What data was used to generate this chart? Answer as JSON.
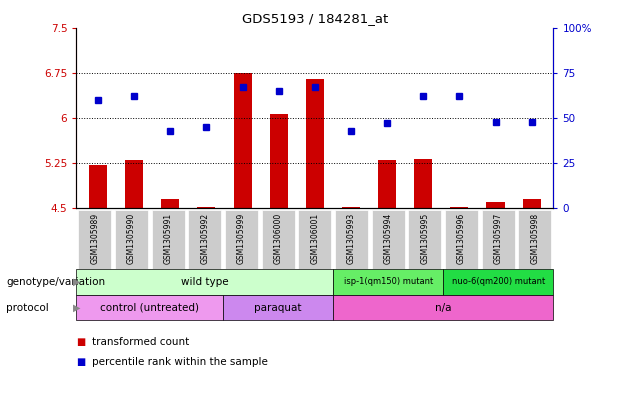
{
  "title": "GDS5193 / 184281_at",
  "samples": [
    "GSM1305989",
    "GSM1305990",
    "GSM1305991",
    "GSM1305992",
    "GSM1305999",
    "GSM1306000",
    "GSM1306001",
    "GSM1305993",
    "GSM1305994",
    "GSM1305995",
    "GSM1305996",
    "GSM1305997",
    "GSM1305998"
  ],
  "transformed_count": [
    5.22,
    5.3,
    4.65,
    4.52,
    6.75,
    6.06,
    6.65,
    4.52,
    5.3,
    5.32,
    4.52,
    4.6,
    4.65
  ],
  "percentile_rank": [
    60,
    62,
    43,
    45,
    67,
    65,
    67,
    43,
    47,
    62,
    62,
    48,
    48
  ],
  "bar_color": "#cc0000",
  "dot_color": "#0000cc",
  "ylim_left": [
    4.5,
    7.5
  ],
  "ylim_right": [
    0,
    100
  ],
  "yticks_left": [
    4.5,
    5.25,
    6.0,
    6.75,
    7.5
  ],
  "yticks_left_labels": [
    "4.5",
    "5.25",
    "6",
    "6.75",
    "7.5"
  ],
  "yticks_right": [
    0,
    25,
    50,
    75,
    100
  ],
  "yticks_right_labels": [
    "0",
    "25",
    "50",
    "75",
    "100%"
  ],
  "hlines": [
    5.25,
    6.0,
    6.75
  ],
  "genotype_groups": [
    {
      "label": "wild type",
      "start": 0,
      "end": 6,
      "color": "#ccffcc"
    },
    {
      "label": "isp-1(qm150) mutant",
      "start": 7,
      "end": 9,
      "color": "#66ee66"
    },
    {
      "label": "nuo-6(qm200) mutant",
      "start": 10,
      "end": 12,
      "color": "#22dd44"
    }
  ],
  "protocol_groups": [
    {
      "label": "control (untreated)",
      "start": 0,
      "end": 3,
      "color": "#ee99ee"
    },
    {
      "label": "paraquat",
      "start": 4,
      "end": 6,
      "color": "#cc88ee"
    },
    {
      "label": "n/a",
      "start": 7,
      "end": 12,
      "color": "#ee66cc"
    }
  ],
  "background_color": "#ffffff",
  "tick_color_left": "#cc0000",
  "tick_color_right": "#0000cc",
  "xtick_bg_color": "#cccccc"
}
